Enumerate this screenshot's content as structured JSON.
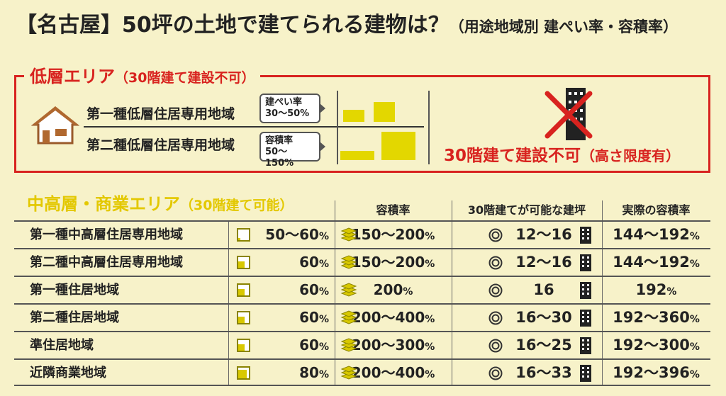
{
  "title": {
    "main": "【名古屋】50坪の土地で建てられる建物は？",
    "sub": "（用途地域別 建ぺい率・容積率）"
  },
  "low_area": {
    "heading": "低層エリア",
    "heading_note": "（30階建て建設不可）",
    "zones": [
      "第一種低層住居専用地域",
      "第二種低層住居専用地域"
    ],
    "kenpei_label": "建ぺい率",
    "kenpei_value": "30〜50%",
    "yoseki_label": "容積率",
    "yoseki_value": "50〜150%",
    "kenpei_bars": [
      30,
      50
    ],
    "yoseki_bars": [
      50,
      150
    ],
    "verdict": "30階建て建設不可",
    "verdict_note": "（高さ限度有）"
  },
  "mid_area": {
    "heading": "中高層・商業エリア",
    "heading_note": "（30階建て可能）",
    "columns": {
      "yoseki": "容積率",
      "tsubo": "30階建てが可能な建坪",
      "actual": "実際の容積率"
    },
    "rows": [
      {
        "name": "第一種中高層住居専用地域",
        "kenpei": "50〜60",
        "yoseki": "150〜200",
        "tsubo": "12〜16",
        "actual": "144〜192",
        "fill": 0.2
      },
      {
        "name": "第二種中高層住居専用地域",
        "kenpei": "60",
        "yoseki": "150〜200",
        "tsubo": "12〜16",
        "actual": "144〜192",
        "fill": 0.6
      },
      {
        "name": "第一種住居地域",
        "kenpei": "60",
        "yoseki": "200",
        "tsubo": "16",
        "actual": "192",
        "fill": 0.6
      },
      {
        "name": "第二種住居地域",
        "kenpei": "60",
        "yoseki": "200〜400",
        "tsubo": "16〜30",
        "actual": "192〜360",
        "fill": 0.6
      },
      {
        "name": "準住居地域",
        "kenpei": "60",
        "yoseki": "200〜300",
        "tsubo": "16〜25",
        "actual": "192〜300",
        "fill": 0.6
      },
      {
        "name": "近隣商業地域",
        "kenpei": "80",
        "yoseki": "200〜400",
        "tsubo": "16〜33",
        "actual": "192〜396",
        "fill": 0.8
      }
    ],
    "pct_symbol": "%"
  },
  "colors": {
    "red": "#d8231f",
    "yellow": "#e3d700",
    "background": "#f7f2c9"
  }
}
